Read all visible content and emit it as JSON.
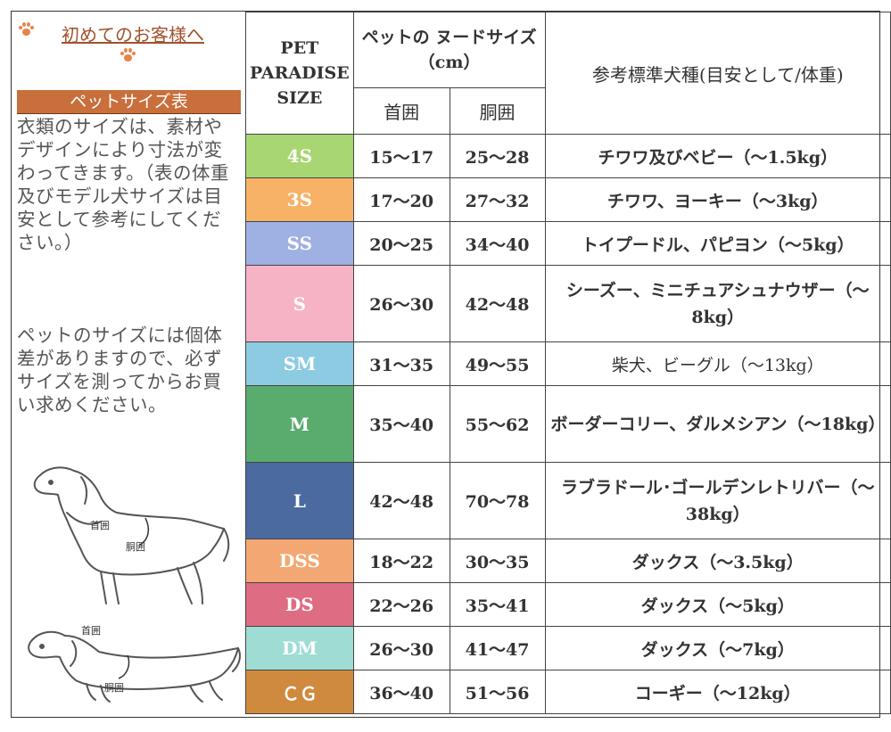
{
  "left_panel": {
    "welcome_link": "初めてのお客様へ",
    "size_table_title": "ペットサイズ表",
    "description_1": "衣類のサイズは、素材やデザインにより寸法が変わってきます。（表の体重及びモデル犬サイズは目安として参考にしてください。）",
    "description_2": "ペットのサイズには個体差がありますので、必ずサイズを測ってからお買い求めください。",
    "diagram_labels": {
      "neck_top": "首囲",
      "body_top": "胴囲",
      "neck_bottom": "首囲",
      "body_bottom": "胴囲"
    },
    "accent_color": "#c86f3c"
  },
  "table": {
    "header_size": "PET PARADISE SIZE",
    "header_nude": "ペットの ヌードサイズ（cm）",
    "header_neck": "首囲",
    "header_body": "胴囲",
    "header_breed": "参考標準犬種(目安として/体重)",
    "rows": [
      {
        "size": "4S",
        "neck": "15～17",
        "body": "25～28",
        "breed": "チワワ及びベビー（～1.5kg）",
        "color": "#a8d672"
      },
      {
        "size": "3S",
        "neck": "17～20",
        "body": "27～32",
        "breed": "チワワ、ヨーキー（～3kg）",
        "color": "#f7b266"
      },
      {
        "size": "SS",
        "neck": "20～25",
        "body": "34～40",
        "breed": "トイプードル、パピヨン（～5kg）",
        "color": "#9fb0e3"
      },
      {
        "size": "S",
        "neck": "26～30",
        "body": "42～48",
        "breed": "シーズー、ミニチュアシュナウザー（～8kg）",
        "color": "#f5b3c5"
      },
      {
        "size": "SM",
        "neck": "31～35",
        "body": "49～55",
        "breed": "柴犬、ビーグル（～13kg）",
        "color": "#8ccbe2"
      },
      {
        "size": "M",
        "neck": "35～40",
        "body": "55～62",
        "breed": "ボーダーコリー、ダルメシアン（～18kg）",
        "color": "#5aab6e"
      },
      {
        "size": "L",
        "neck": "42～48",
        "body": "70～78",
        "breed": "ラブラドール･ゴールデンレトリバー（～38kg）",
        "color": "#4a6aa0"
      },
      {
        "size": "DSS",
        "neck": "18～22",
        "body": "30～35",
        "breed": "ダックス（～3.5kg）",
        "color": "#f3a873"
      },
      {
        "size": "DS",
        "neck": "22～26",
        "body": "35～41",
        "breed": "ダックス（～5kg）",
        "color": "#de6c82"
      },
      {
        "size": "DM",
        "neck": "26～30",
        "body": "41～47",
        "breed": "ダックス（～7kg）",
        "color": "#9fdcd4"
      },
      {
        "size": "ＣＧ",
        "neck": "36～40",
        "body": "51～56",
        "breed": "コーギー（～12kg）",
        "color": "#cf8a3e"
      }
    ]
  }
}
